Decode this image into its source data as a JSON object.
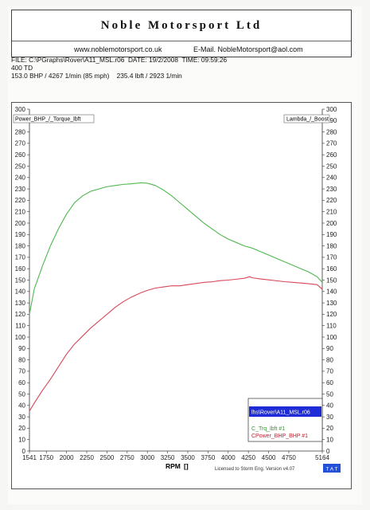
{
  "header": {
    "company": "Noble Motorsport Ltd",
    "website": "www.noblemotorsport.co.uk",
    "email": "E-Mail. NobleMotorsport@aol.com"
  },
  "run_info": {
    "line1": "FILE: C:\\PGraphs\\Rover\\A11_MSL.r06  DATE: 19/2/2008  TIME: 09:59:26",
    "line2": "400 TD",
    "line3": "153.0 BHP / 4267 1/min (85 mph)    235.4 lbft / 2923 1/min"
  },
  "footer": {
    "credit": "Licensed to Storm Eng.  Version v4.07",
    "corner_label": "T A T"
  },
  "chart_data": {
    "type": "line",
    "title": "",
    "left_axis_label": "Power_BHP_/_Torque_lbft",
    "right_axis_label": "Lambda_/_Boost",
    "xlabel": "RPM",
    "xlabel_suffix": "[]",
    "xlim": [
      1541,
      5164
    ],
    "x_ticks": [
      1541,
      1750,
      2000,
      2250,
      2500,
      2750,
      3000,
      3250,
      3500,
      3750,
      4000,
      4250,
      4500,
      4750,
      5164
    ],
    "ylim_left": [
      0,
      300
    ],
    "y_ticks_left": [
      0,
      10,
      20,
      30,
      40,
      50,
      60,
      70,
      80,
      90,
      100,
      110,
      120,
      130,
      140,
      150,
      160,
      170,
      180,
      190,
      200,
      210,
      220,
      230,
      240,
      250,
      260,
      270,
      280,
      290,
      300
    ],
    "ylim_right": [
      0,
      300
    ],
    "y_ticks_right": [
      0,
      10,
      20,
      30,
      40,
      50,
      60,
      70,
      80,
      90,
      100,
      110,
      120,
      130,
      140,
      150,
      160,
      170,
      180,
      190,
      200,
      210,
      220,
      230,
      240,
      250,
      260,
      270,
      280,
      290,
      300
    ],
    "legend": {
      "file": "lhs\\Rover\\A11_MSL.r06",
      "entries": [
        "C_Trq_lbft #1",
        "CPower_BHP_BHP #1"
      ]
    },
    "series": [
      {
        "name": "C_Trq_lbft #1",
        "color": "#4fb84f",
        "x": [
          1541,
          1600,
          1700,
          1800,
          1900,
          2000,
          2100,
          2200,
          2300,
          2400,
          2500,
          2600,
          2700,
          2800,
          2923,
          3000,
          3100,
          3200,
          3300,
          3400,
          3500,
          3600,
          3700,
          3800,
          3900,
          4000,
          4100,
          4200,
          4300,
          4400,
          4500,
          4600,
          4700,
          4800,
          4900,
          5000,
          5100,
          5164
        ],
        "y": [
          120,
          142,
          162,
          180,
          195,
          208,
          218,
          224,
          228,
          230,
          232,
          233,
          234,
          234.5,
          235.4,
          235,
          233,
          229,
          224,
          218,
          212,
          206,
          200,
          195,
          190,
          186,
          183,
          180,
          178,
          175,
          172,
          169,
          166,
          163,
          160,
          157,
          153,
          148
        ]
      },
      {
        "name": "CPower_BHP_BHP #1",
        "color": "#d84858",
        "x": [
          1541,
          1600,
          1700,
          1800,
          1900,
          2000,
          2100,
          2200,
          2300,
          2400,
          2500,
          2600,
          2700,
          2800,
          2923,
          3000,
          3100,
          3200,
          3300,
          3400,
          3500,
          3600,
          3700,
          3800,
          3900,
          4000,
          4100,
          4200,
          4267,
          4300,
          4400,
          4500,
          4600,
          4700,
          4800,
          4900,
          5000,
          5100,
          5164
        ],
        "y": [
          35,
          42,
          53,
          63,
          74,
          85,
          94,
          101,
          108,
          114,
          120,
          126,
          131,
          135,
          139,
          141,
          143,
          144,
          145,
          145,
          146,
          147,
          148,
          148.5,
          149.5,
          150,
          150.8,
          151.6,
          153,
          152,
          151,
          150.2,
          149.4,
          148.6,
          148,
          147.4,
          146.8,
          146,
          142
        ]
      }
    ]
  }
}
